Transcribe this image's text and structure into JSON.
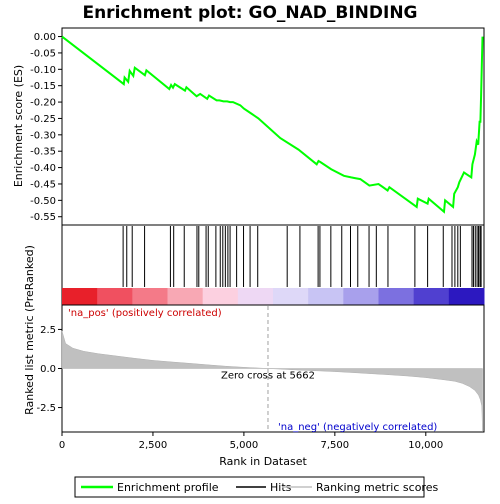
{
  "chart_data": {
    "type": "line",
    "title": "Enrichment plot: GO_NAD_BINDING",
    "panels": {
      "enrichment": {
        "ylabel": "Enrichment score (ES)",
        "ylim": [
          -0.55,
          0.0
        ],
        "yticks": [
          0.0,
          -0.05,
          -0.1,
          -0.15,
          -0.2,
          -0.25,
          -0.3,
          -0.35,
          -0.4,
          -0.45,
          -0.5,
          -0.55
        ],
        "ytick_labels": [
          "0.00",
          "-0.05",
          "-0.10",
          "-0.15",
          "-0.20",
          "-0.25",
          "-0.30",
          "-0.35",
          "-0.40",
          "-0.45",
          "-0.50",
          "-0.55"
        ]
      },
      "ranked_metric": {
        "ylabel": "Ranked list metric (PreRanked)",
        "ylim": [
          -4.0,
          4.0
        ],
        "yticks": [
          2.5,
          0.0,
          -2.5
        ],
        "ytick_labels": [
          "2.5",
          "0.0",
          "-2.5"
        ]
      }
    },
    "xlabel": "Rank in Dataset",
    "xlim": [
      0,
      11600
    ],
    "xticks": [
      0,
      2500,
      5000,
      7500,
      10000
    ],
    "xtick_labels": [
      "0",
      "2,500",
      "5,000",
      "7,500",
      "10,000"
    ],
    "series": [
      {
        "name": "Enrichment profile",
        "color": "#00ff00",
        "x": [
          0,
          1700,
          1720,
          1820,
          1860,
          1960,
          2000,
          2280,
          2320,
          2950,
          3000,
          3050,
          3100,
          3380,
          3420,
          3700,
          3800,
          3990,
          4040,
          4250,
          4330,
          4440,
          4540,
          4620,
          4700,
          4900,
          5000,
          5200,
          5400,
          6000,
          6500,
          7000,
          7050,
          7100,
          7400,
          7750,
          7950,
          8050,
          8200,
          8450,
          8700,
          8950,
          9000,
          9750,
          9780,
          10050,
          10080,
          10500,
          10530,
          10750,
          10780,
          10880,
          10920,
          11050,
          11250,
          11280,
          11350,
          11400,
          11440,
          11480,
          11500,
          11520,
          11540,
          11560
        ],
        "y": [
          0.0,
          -0.145,
          -0.125,
          -0.138,
          -0.105,
          -0.12,
          -0.095,
          -0.118,
          -0.103,
          -0.16,
          -0.148,
          -0.156,
          -0.145,
          -0.165,
          -0.155,
          -0.182,
          -0.175,
          -0.19,
          -0.18,
          -0.195,
          -0.195,
          -0.198,
          -0.198,
          -0.2,
          -0.2,
          -0.21,
          -0.22,
          -0.235,
          -0.25,
          -0.31,
          -0.345,
          -0.39,
          -0.38,
          -0.383,
          -0.405,
          -0.425,
          -0.43,
          -0.432,
          -0.435,
          -0.455,
          -0.45,
          -0.47,
          -0.46,
          -0.52,
          -0.495,
          -0.51,
          -0.495,
          -0.535,
          -0.5,
          -0.52,
          -0.48,
          -0.46,
          -0.445,
          -0.415,
          -0.43,
          -0.39,
          -0.36,
          -0.32,
          -0.33,
          -0.26,
          -0.26,
          -0.18,
          -0.09,
          0.0
        ]
      }
    ],
    "hits_label": "Hits",
    "hit_positions": [
      1680,
      1780,
      1930,
      2270,
      2980,
      3070,
      3360,
      3710,
      3760,
      3960,
      4020,
      4230,
      4350,
      4420,
      4490,
      4560,
      4620,
      4800,
      4990,
      5170,
      5380,
      6190,
      6540,
      7040,
      7090,
      7390,
      7690,
      7930,
      8130,
      8440,
      8640,
      8960,
      9700,
      10050,
      10480,
      10720,
      10800,
      10880,
      10950,
      11270,
      11310,
      11360,
      11410,
      11450,
      11490,
      11520
    ],
    "ranking_label": "Ranking metric scores",
    "ranking_profile": {
      "x": [
        0,
        100,
        300,
        600,
        1000,
        1500,
        2000,
        2500,
        3000,
        3500,
        4000,
        4500,
        5000,
        5662,
        6000,
        6500,
        7000,
        7500,
        8000,
        8500,
        9000,
        9500,
        10000,
        10500,
        10800,
        11000,
        11200,
        11350,
        11450,
        11500,
        11540,
        11560
      ],
      "y": [
        2.4,
        1.6,
        1.3,
        1.1,
        0.95,
        0.8,
        0.65,
        0.52,
        0.42,
        0.33,
        0.24,
        0.15,
        0.08,
        0.0,
        -0.04,
        -0.1,
        -0.15,
        -0.2,
        -0.26,
        -0.33,
        -0.4,
        -0.48,
        -0.58,
        -0.72,
        -0.82,
        -0.95,
        -1.15,
        -1.4,
        -1.7,
        -2.0,
        -2.4,
        -4.0
      ]
    },
    "zero_cross_label": "Zero cross at 5662",
    "zero_cross_x": 5662,
    "pos_label": "'na_pos' (positively correlated)",
    "neg_label": "'na_neg' (negatively correlated)",
    "pos_color": "#cc0000",
    "neg_color": "#0000cc",
    "heat_colors": [
      "#e8202a",
      "#f05060",
      "#f47a88",
      "#f8a8b4",
      "#fcd0e0",
      "#eed8f4",
      "#ded8f8",
      "#c8c4f4",
      "#a8a0ec",
      "#7c70e0",
      "#5040d0",
      "#2c18c0"
    ],
    "legend": [
      "Enrichment profile",
      "Hits",
      "Ranking metric scores"
    ]
  }
}
